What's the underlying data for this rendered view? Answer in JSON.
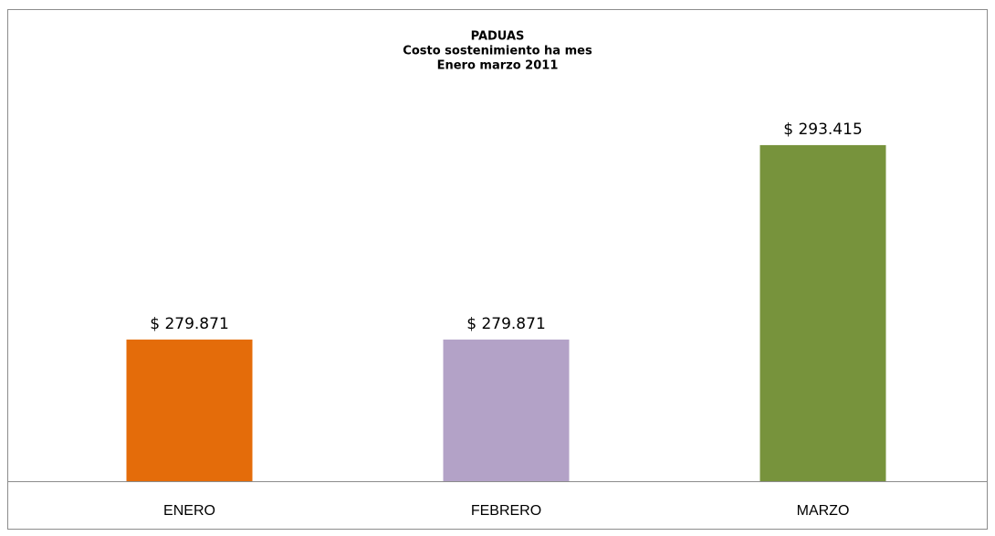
{
  "chart_data": {
    "type": "bar",
    "title": [
      "PADUAS",
      "Costo sostenimiento ha mes",
      "Enero marzo 2011"
    ],
    "categories": [
      "ENERO",
      "FEBRERO",
      "MARZO"
    ],
    "values": [
      279871,
      279871,
      293415
    ],
    "value_labels": [
      "$ 279.871",
      "$ 279.871",
      "$ 293.415"
    ],
    "colors": [
      "#e46c0a",
      "#b3a2c7",
      "#77933c"
    ],
    "ylim": [
      270000,
      295000
    ]
  }
}
